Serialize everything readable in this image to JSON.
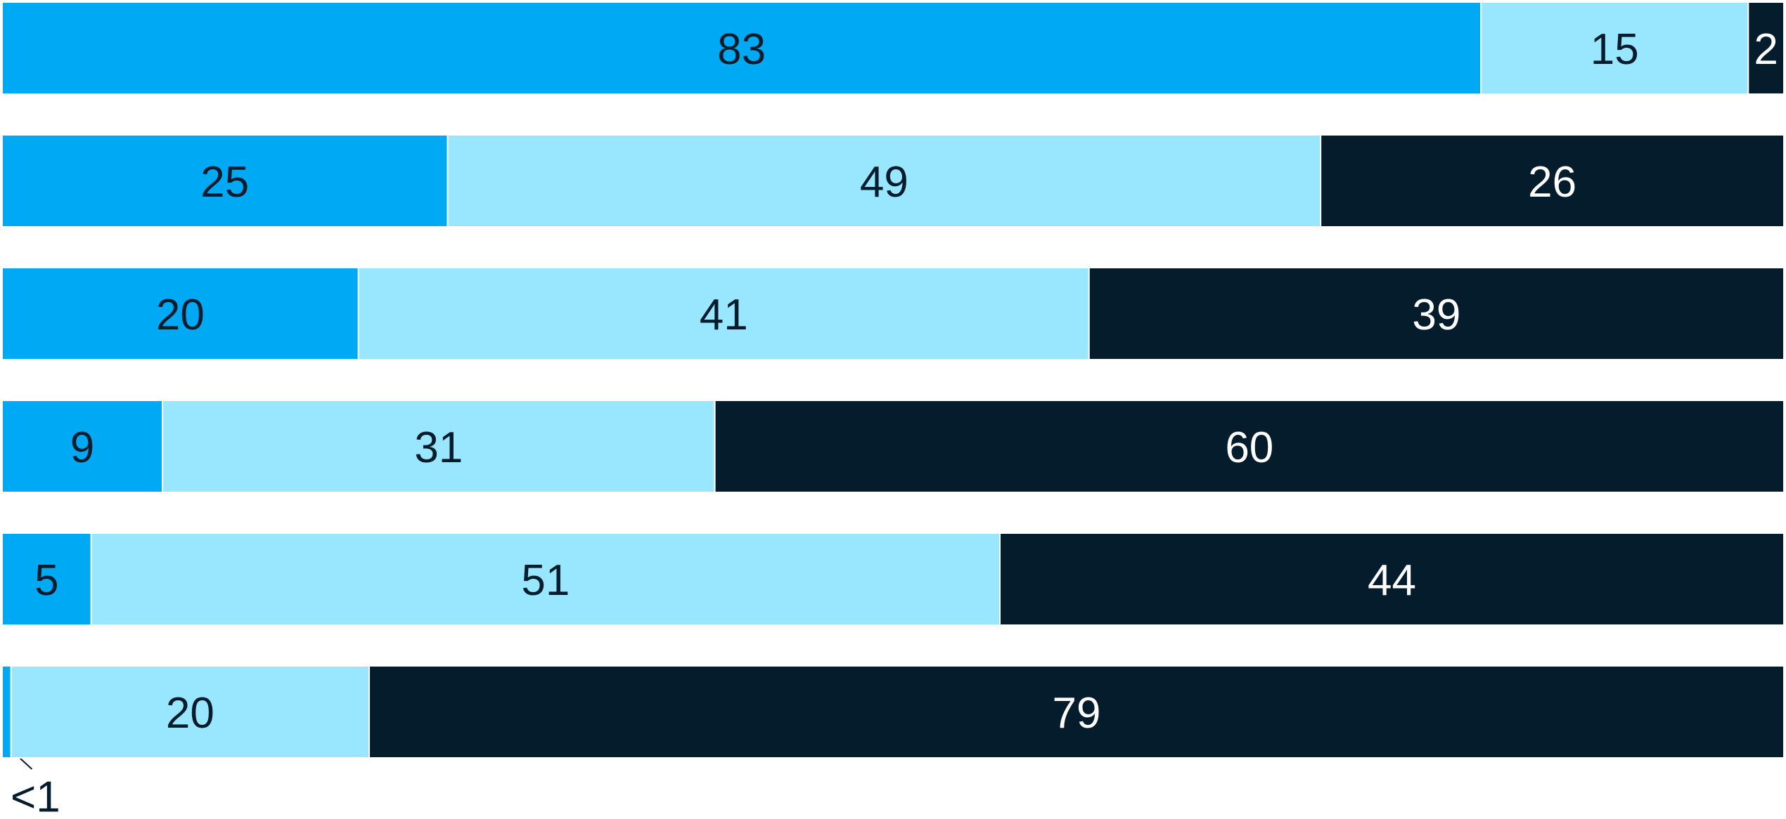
{
  "chart_data": {
    "type": "bar",
    "orientation": "horizontal",
    "stacked": true,
    "title": "",
    "xlabel": "",
    "ylabel": "",
    "xlim": [
      0,
      100
    ],
    "grid": false,
    "legend": "none",
    "categories": [
      "",
      "",
      "",
      "",
      "",
      ""
    ],
    "series": [
      {
        "values": [
          83,
          25,
          20,
          9,
          5,
          0.5
        ],
        "labels": [
          "83",
          "25",
          "20",
          "9",
          "5",
          "<1"
        ],
        "color": "#00A9F4",
        "text_color": "#051C2C"
      },
      {
        "values": [
          15,
          49,
          41,
          31,
          51,
          20
        ],
        "labels": [
          "15",
          "49",
          "41",
          "31",
          "51",
          "20"
        ],
        "color": "#99E6FF",
        "text_color": "#051C2C"
      },
      {
        "values": [
          2,
          26,
          39,
          60,
          44,
          79
        ],
        "labels": [
          "2",
          "26",
          "39",
          "60",
          "44",
          "79"
        ],
        "color": "#051C2C",
        "text_color": "#FFFFFF"
      }
    ]
  }
}
